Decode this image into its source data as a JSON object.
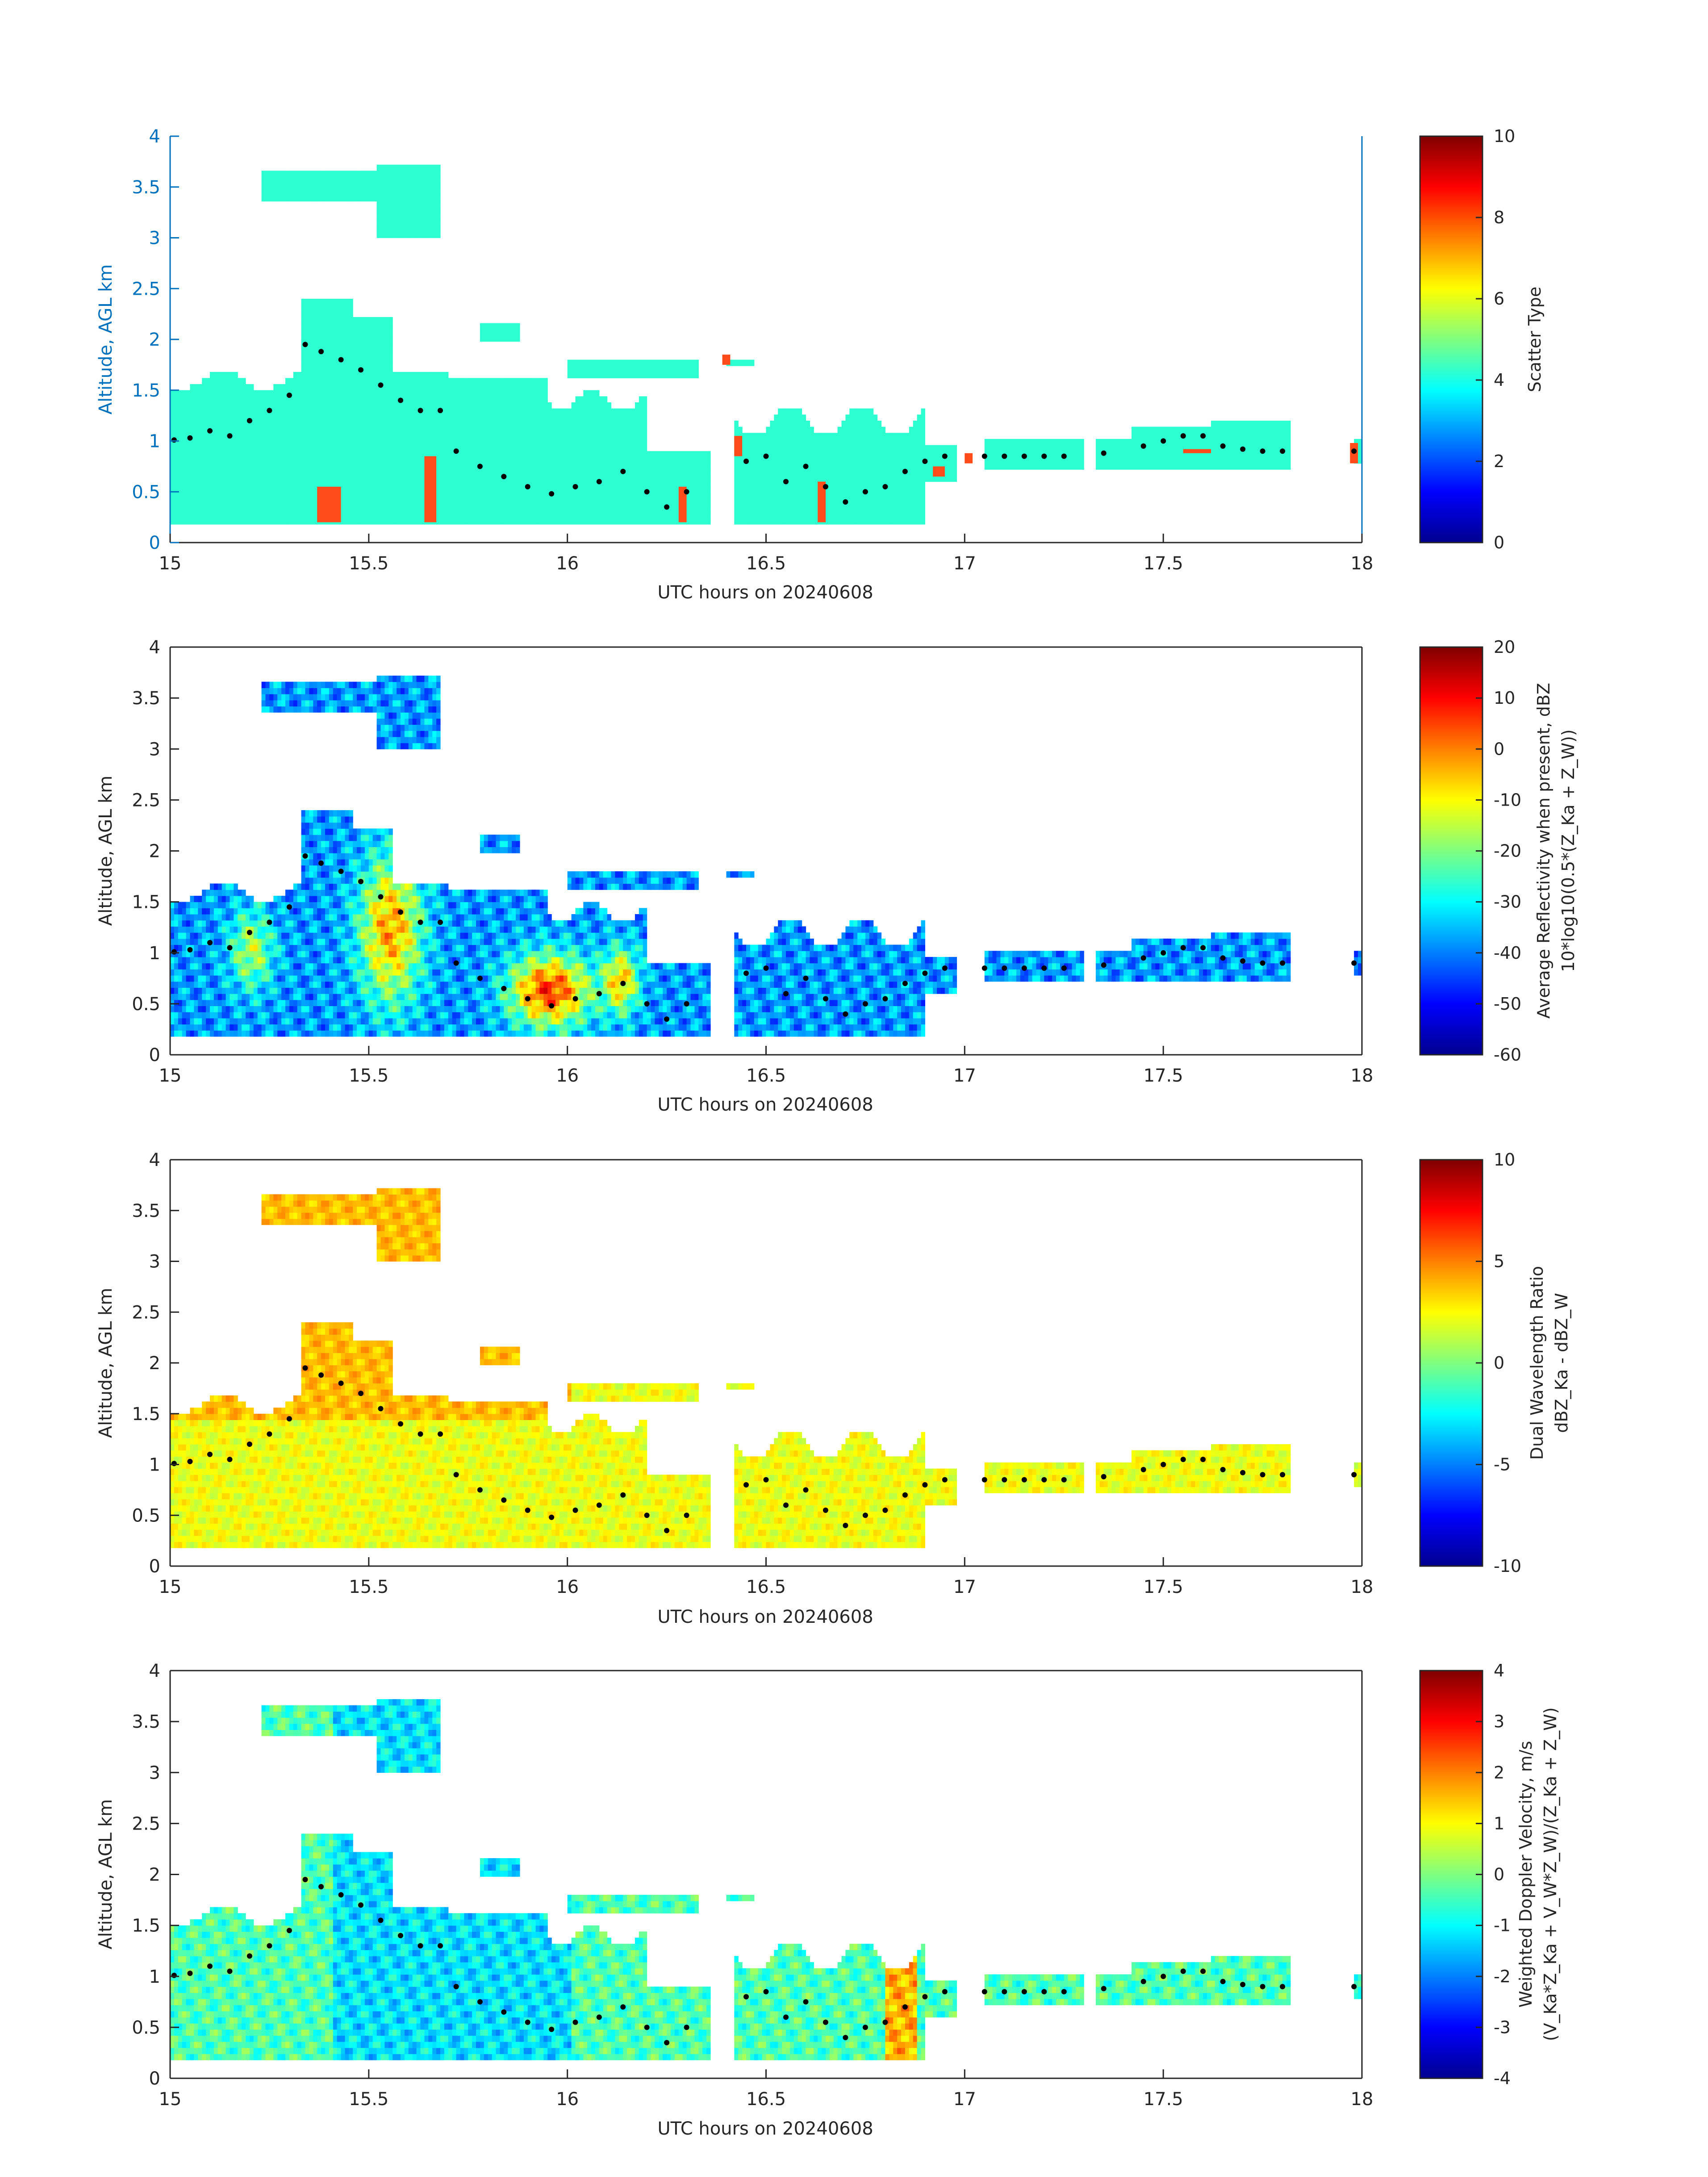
{
  "figure": {
    "panels": [
      {
        "chart_data": {
          "type": "heatmap",
          "xlabel": "UTC hours on 20240608",
          "ylabel": "Altitude, AGL km",
          "xlim": [
            15,
            18
          ],
          "ylim": [
            0,
            4
          ],
          "x_ticks": [
            "15",
            "15.5",
            "16",
            "16.5",
            "17",
            "17.5",
            "18"
          ],
          "y_ticks": [
            "0",
            "0.5",
            "1",
            "1.5",
            "2",
            "2.5",
            "3",
            "3.5",
            "4"
          ],
          "colorbar": {
            "label": "Scatter Type",
            "range": [
              0,
              10
            ],
            "ticks": [
              "0",
              "2",
              "4",
              "6",
              "8",
              "10"
            ]
          },
          "dominant_value": 4.2
        }
      },
      {
        "chart_data": {
          "type": "heatmap",
          "xlabel": "UTC hours on 20240608",
          "ylabel": "Altitude, AGL km",
          "xlim": [
            15,
            18
          ],
          "ylim": [
            0,
            4
          ],
          "x_ticks": [
            "15",
            "15.5",
            "16",
            "16.5",
            "17",
            "17.5",
            "18"
          ],
          "y_ticks": [
            "0",
            "0.5",
            "1",
            "1.5",
            "2",
            "2.5",
            "3",
            "3.5",
            "4"
          ],
          "colorbar": {
            "label": "Average Reflectivity when present, dBZ",
            "label2": "10*log10(0.5*(Z_Ka + Z_W))",
            "range": [
              -60,
              20
            ],
            "ticks": [
              "-60",
              "-50",
              "-40",
              "-30",
              "-20",
              "-10",
              "0",
              "10",
              "20"
            ]
          }
        }
      },
      {
        "chart_data": {
          "type": "heatmap",
          "xlabel": "UTC hours on 20240608",
          "ylabel": "Altitude, AGL km",
          "xlim": [
            15,
            18
          ],
          "ylim": [
            0,
            4
          ],
          "x_ticks": [
            "15",
            "15.5",
            "16",
            "16.5",
            "17",
            "17.5",
            "18"
          ],
          "y_ticks": [
            "0",
            "0.5",
            "1",
            "1.5",
            "2",
            "2.5",
            "3",
            "3.5",
            "4"
          ],
          "colorbar": {
            "label": "Dual Wavelength Ratio",
            "label2": "dBZ_Ka - dBZ_W",
            "range": [
              -10,
              10
            ],
            "ticks": [
              "-10",
              "-5",
              "0",
              "5",
              "10"
            ]
          }
        }
      },
      {
        "chart_data": {
          "type": "heatmap",
          "xlabel": "UTC hours on 20240608",
          "ylabel": "Altitude, AGL km",
          "xlim": [
            15,
            18
          ],
          "ylim": [
            0,
            4
          ],
          "x_ticks": [
            "15",
            "15.5",
            "16",
            "16.5",
            "17",
            "17.5",
            "18"
          ],
          "y_ticks": [
            "0",
            "0.5",
            "1",
            "1.5",
            "2",
            "2.5",
            "3",
            "3.5",
            "4"
          ],
          "colorbar": {
            "label": "Weighted Doppler Velocity, m/s",
            "label2": "(V_Ka*Z_Ka + V_W*Z_W)/(Z_Ka + Z_W)",
            "range": [
              -4,
              4
            ],
            "ticks": [
              "-4",
              "-3",
              "-2",
              "-1",
              "0",
              "1",
              "2",
              "3",
              "4"
            ]
          }
        }
      }
    ],
    "cloud_boundary_dots": [
      [
        15.01,
        1.01
      ],
      [
        15.05,
        1.03
      ],
      [
        15.1,
        1.1
      ],
      [
        15.15,
        1.05
      ],
      [
        15.2,
        1.2
      ],
      [
        15.25,
        1.3
      ],
      [
        15.3,
        1.45
      ],
      [
        15.34,
        1.95
      ],
      [
        15.38,
        1.88
      ],
      [
        15.43,
        1.8
      ],
      [
        15.48,
        1.7
      ],
      [
        15.53,
        1.55
      ],
      [
        15.58,
        1.4
      ],
      [
        15.63,
        1.3
      ],
      [
        15.68,
        1.3
      ],
      [
        15.72,
        0.9
      ],
      [
        15.78,
        0.75
      ],
      [
        15.84,
        0.65
      ],
      [
        15.9,
        0.55
      ],
      [
        15.96,
        0.48
      ],
      [
        16.02,
        0.55
      ],
      [
        16.08,
        0.6
      ],
      [
        16.14,
        0.7
      ],
      [
        16.2,
        0.5
      ],
      [
        16.25,
        0.35
      ],
      [
        16.3,
        0.5
      ],
      [
        16.45,
        0.8
      ],
      [
        16.5,
        0.85
      ],
      [
        16.55,
        0.6
      ],
      [
        16.6,
        0.75
      ],
      [
        16.65,
        0.55
      ],
      [
        16.7,
        0.4
      ],
      [
        16.75,
        0.5
      ],
      [
        16.8,
        0.55
      ],
      [
        16.85,
        0.7
      ],
      [
        16.9,
        0.8
      ],
      [
        16.95,
        0.85
      ],
      [
        17.05,
        0.85
      ],
      [
        17.1,
        0.85
      ],
      [
        17.15,
        0.85
      ],
      [
        17.2,
        0.85
      ],
      [
        17.25,
        0.85
      ],
      [
        17.35,
        0.88
      ],
      [
        17.45,
        0.95
      ],
      [
        17.5,
        1.0
      ],
      [
        17.55,
        1.05
      ],
      [
        17.6,
        1.05
      ],
      [
        17.65,
        0.95
      ],
      [
        17.7,
        0.92
      ],
      [
        17.75,
        0.9
      ],
      [
        17.8,
        0.9
      ],
      [
        17.98,
        0.9
      ]
    ]
  }
}
